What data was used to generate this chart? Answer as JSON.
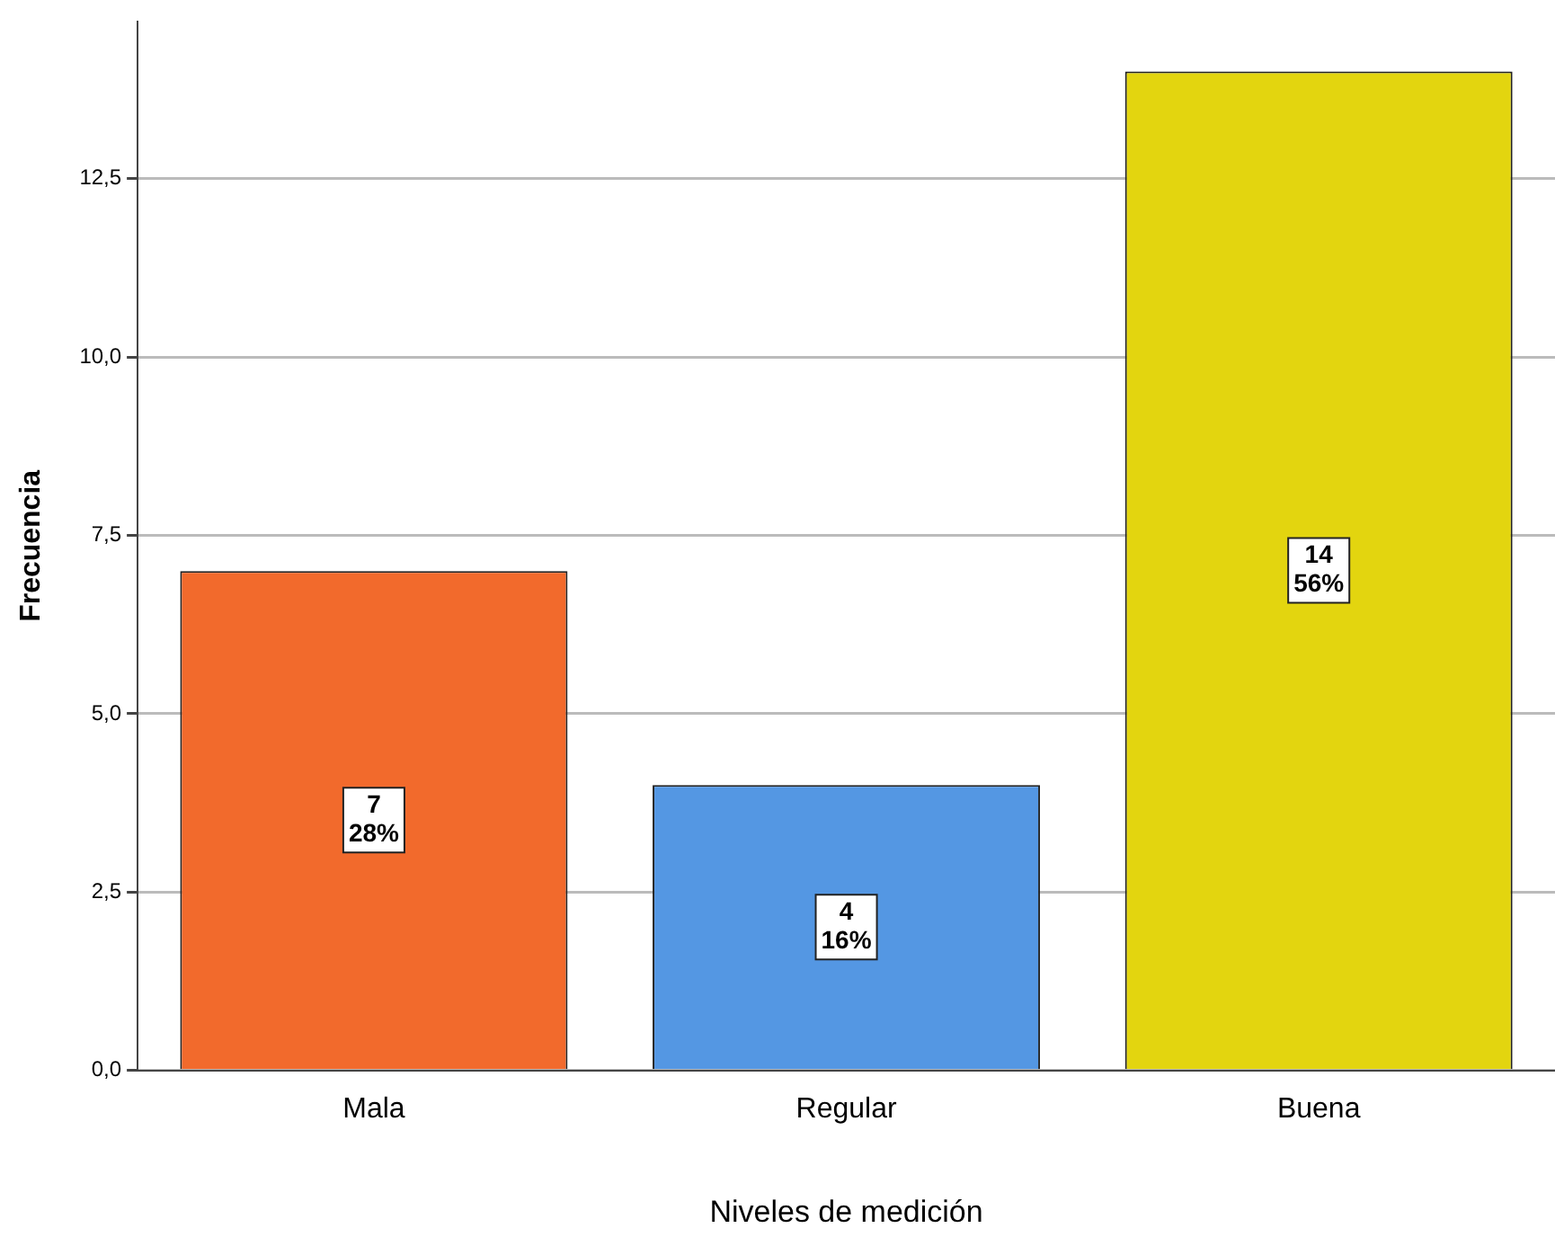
{
  "chart_data": {
    "type": "bar",
    "xlabel": "Niveles de medición",
    "ylabel": "Frecuencia",
    "categories": [
      "Mala",
      "Regular",
      "Buena"
    ],
    "values": [
      7,
      4,
      14
    ],
    "colors": [
      "#f26a2c",
      "#5497e3",
      "#e3d50f"
    ],
    "value_labels": [
      "7\n28%",
      "4\n16%",
      "14\n56%"
    ],
    "ylim": [
      0,
      14.7
    ],
    "yticks": [
      {
        "value": 0,
        "label": "0,0"
      },
      {
        "value": 2.5,
        "label": "2,5"
      },
      {
        "value": 5,
        "label": "5,0"
      },
      {
        "value": 7.5,
        "label": "7,5"
      },
      {
        "value": 10,
        "label": "10,0"
      },
      {
        "value": 12.5,
        "label": "12,5"
      }
    ],
    "grid": "y",
    "legend": false
  }
}
